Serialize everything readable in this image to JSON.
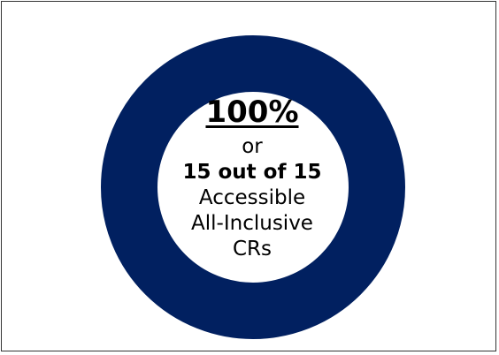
{
  "chart_data": {
    "type": "pie",
    "subtype": "donut",
    "values": [
      15
    ],
    "total": 15,
    "center_labels": {
      "percent": "100%",
      "or": "or",
      "count": "15 out of 15",
      "line1": "Accessible",
      "line2": "All-Inclusive",
      "line3": "CRs"
    }
  },
  "colors": {
    "ring": "#012060",
    "hole": "#ffffff",
    "background": "#ffffff",
    "text": "#000000"
  }
}
